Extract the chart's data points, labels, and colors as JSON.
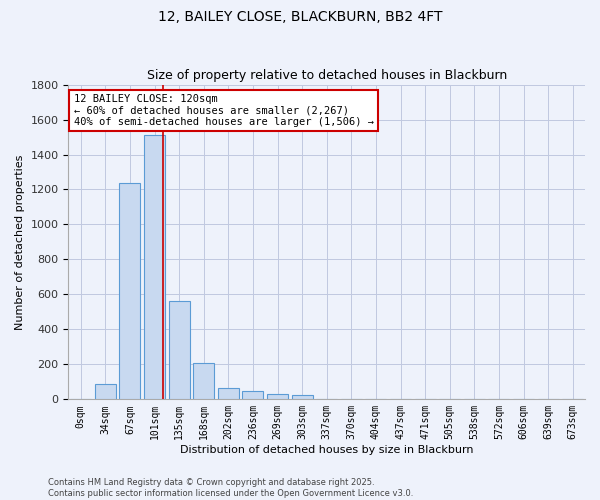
{
  "title": "12, BAILEY CLOSE, BLACKBURN, BB2 4FT",
  "subtitle": "Size of property relative to detached houses in Blackburn",
  "xlabel": "Distribution of detached houses by size in Blackburn",
  "ylabel": "Number of detached properties",
  "categories": [
    "0sqm",
    "34sqm",
    "67sqm",
    "101sqm",
    "135sqm",
    "168sqm",
    "202sqm",
    "236sqm",
    "269sqm",
    "303sqm",
    "337sqm",
    "370sqm",
    "404sqm",
    "437sqm",
    "471sqm",
    "505sqm",
    "538sqm",
    "572sqm",
    "606sqm",
    "639sqm",
    "673sqm"
  ],
  "values": [
    0,
    90,
    1235,
    1510,
    560,
    210,
    65,
    45,
    33,
    25,
    0,
    0,
    0,
    0,
    0,
    0,
    0,
    0,
    0,
    0,
    0
  ],
  "bar_color": "#c8d9f0",
  "bar_edge_color": "#5b9bd5",
  "background_color": "#eef2fb",
  "grid_color": "#c0c8e0",
  "annotation_text": "12 BAILEY CLOSE: 120sqm\n← 60% of detached houses are smaller (2,267)\n40% of semi-detached houses are larger (1,506) →",
  "annotation_box_facecolor": "#ffffff",
  "annotation_box_edge_color": "#cc0000",
  "red_line_x": 3.35,
  "ylim": [
    0,
    1800
  ],
  "yticks": [
    0,
    200,
    400,
    600,
    800,
    1000,
    1200,
    1400,
    1600,
    1800
  ],
  "footer_line1": "Contains HM Land Registry data © Crown copyright and database right 2025.",
  "footer_line2": "Contains public sector information licensed under the Open Government Licence v3.0.",
  "title_fontsize": 10,
  "subtitle_fontsize": 9
}
